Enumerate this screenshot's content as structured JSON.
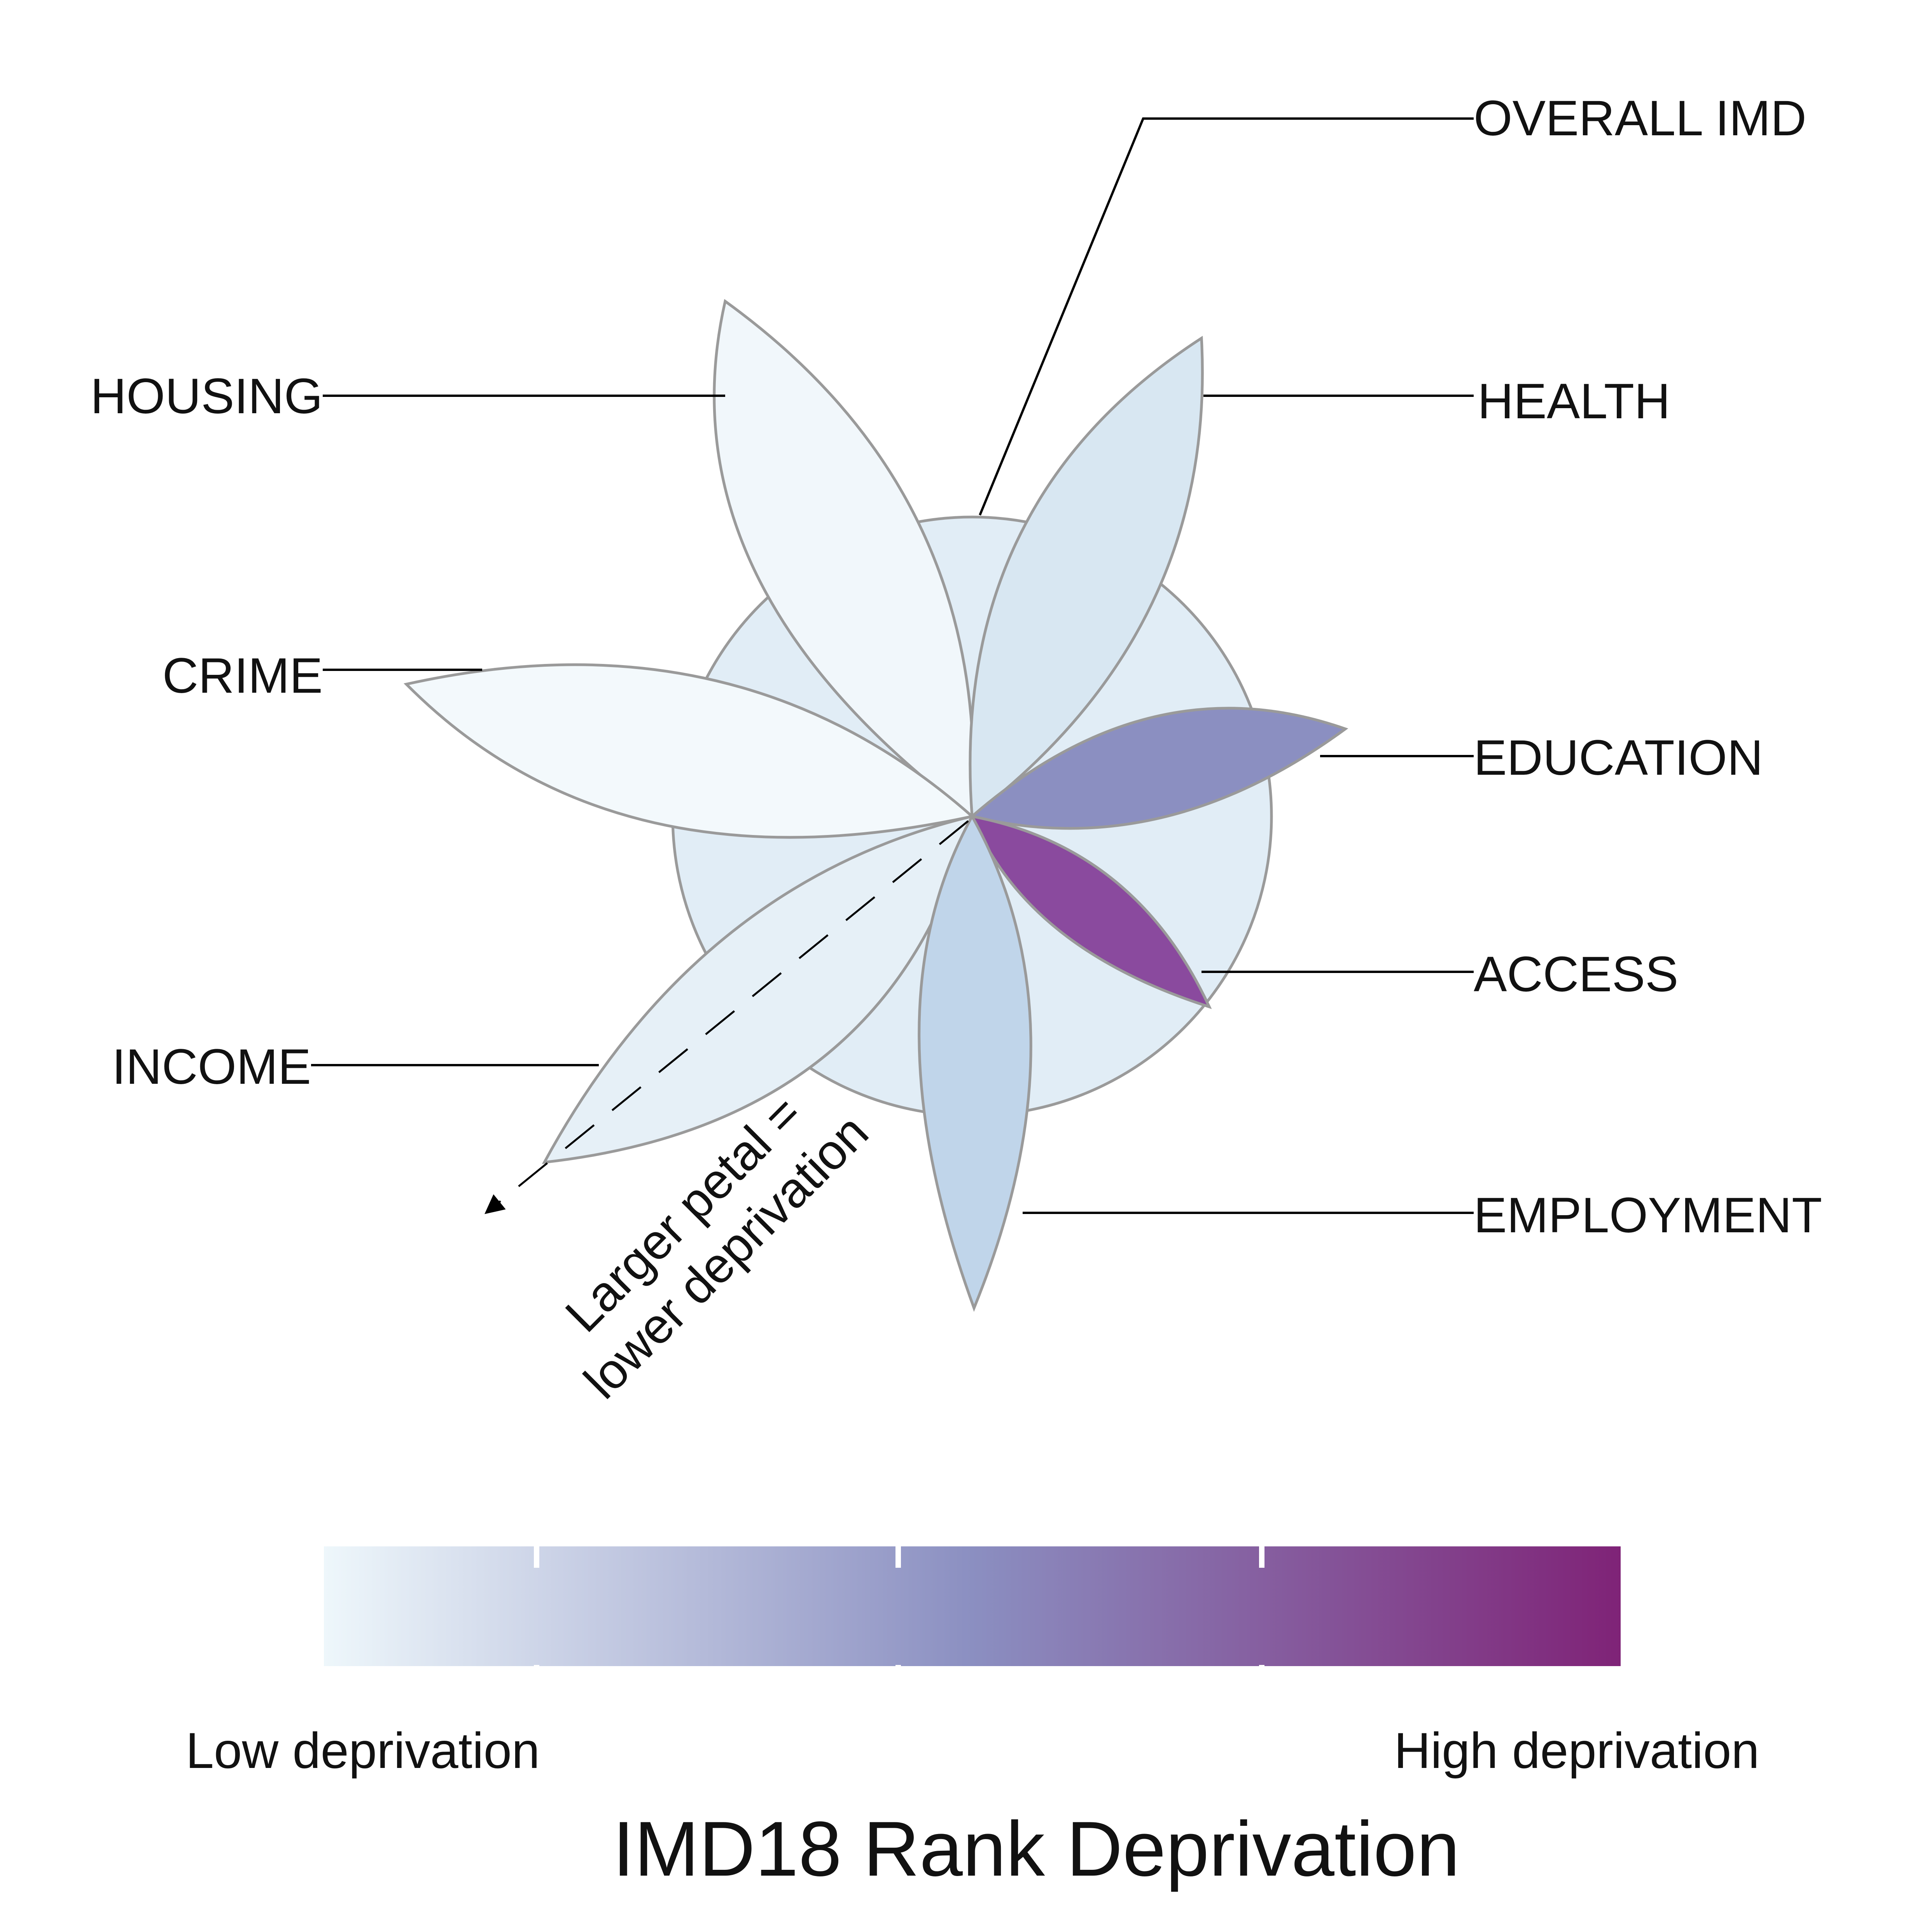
{
  "diagram": {
    "petal_labels": {
      "overall_imd": "OVERALL IMD",
      "housing": "HOUSING",
      "health": "HEALTH",
      "crime": "CRIME",
      "education": "EDUCATION",
      "access": "ACCESS",
      "income": "INCOME",
      "employment": "EMPLOYMENT"
    },
    "petal_colors": {
      "overall_imd": "#e1edf6",
      "housing": "#f1f7fb",
      "health": "#d8e7f2",
      "crime": "#f3f9fc",
      "education": "#8b8fc1",
      "access": "#8a4a9e",
      "income": "#e6f0f7",
      "employment": "#c0d5ea"
    },
    "annotation": {
      "line1": "Larger petal =",
      "line2": "lower deprivation"
    }
  },
  "legend": {
    "low_label": "Low deprivation",
    "high_label": "High deprivation",
    "title": "IMD18 Rank Deprivation",
    "color_low": "#eef7fb",
    "color_mid": "#8b8fc1",
    "color_high": "#7f2377"
  }
}
